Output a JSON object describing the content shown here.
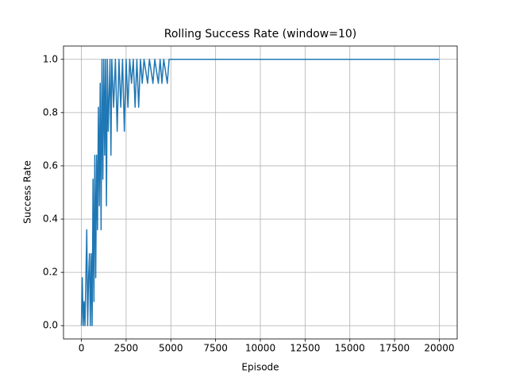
{
  "chart_data": {
    "type": "line",
    "title": "Rolling Success Rate (window=10)",
    "x_label": "Episode",
    "y_label": "Success Rate",
    "x": [
      0,
      50,
      100,
      150,
      200,
      250,
      300,
      350,
      400,
      450,
      500,
      550,
      600,
      650,
      700,
      750,
      800,
      850,
      900,
      950,
      1000,
      1050,
      1100,
      1150,
      1200,
      1250,
      1300,
      1350,
      1400,
      1450,
      1500,
      1600,
      1650,
      1700,
      1800,
      1900,
      2000,
      2100,
      2200,
      2300,
      2400,
      2500,
      2600,
      2700,
      2800,
      2900,
      3000,
      3100,
      3200,
      3300,
      3400,
      3500,
      3700,
      3800,
      4000,
      4100,
      4300,
      4400,
      4500,
      4600,
      4800,
      4900,
      20000
    ],
    "series": [
      {
        "name": "Success Rate",
        "color": "#1f77b4",
        "values": [
          0,
          0.18,
          0,
          0.09,
          0,
          0.18,
          0.36,
          0,
          0.18,
          0.27,
          0,
          0.27,
          0,
          0.55,
          0.09,
          0.64,
          0.18,
          0.64,
          0.36,
          0.82,
          0.45,
          0.91,
          0.36,
          1.0,
          0.55,
          1.0,
          0.64,
          1.0,
          0.45,
          1.0,
          0.73,
          1.0,
          0.64,
          1.0,
          0.82,
          1.0,
          0.73,
          1.0,
          0.82,
          1.0,
          0.73,
          1.0,
          0.82,
          1.0,
          0.91,
          1.0,
          0.82,
          1.0,
          0.82,
          1.0,
          0.91,
          1.0,
          0.91,
          1.0,
          0.91,
          1.0,
          0.91,
          1.0,
          0.91,
          1.0,
          0.91,
          1.0,
          1.0
        ]
      }
    ],
    "xlim": [
      -1000,
      21000
    ],
    "ylim": [
      -0.05,
      1.05
    ],
    "xticks": [
      0,
      2500,
      5000,
      7500,
      10000,
      12500,
      15000,
      17500,
      20000
    ],
    "yticks": [
      {
        "value": 0,
        "label": "0.0"
      },
      0.2,
      0.4,
      0.6,
      0.8,
      {
        "value": 1,
        "label": "1.0"
      }
    ],
    "grid": true
  }
}
